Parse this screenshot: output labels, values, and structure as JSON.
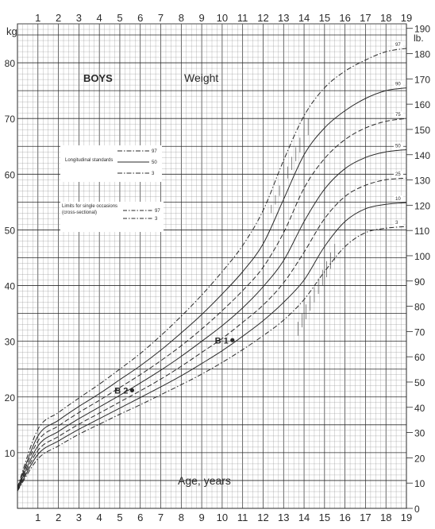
{
  "chart_data": {
    "type": "line",
    "title": "BOYS",
    "subtitle": "Weight",
    "xlabel": "Age, years",
    "ylabel_left": "kg",
    "ylabel_right": "lb.",
    "xlim": [
      0,
      19
    ],
    "ylim": [
      0,
      87
    ],
    "x_ticks": [
      "1",
      "2",
      "3",
      "4",
      "5",
      "6",
      "7",
      "8",
      "9",
      "10",
      "11",
      "12",
      "13",
      "14",
      "15",
      "16",
      "17",
      "18",
      "19"
    ],
    "kg_ticks": [
      "10",
      "20",
      "30",
      "40",
      "50",
      "60",
      "70",
      "80"
    ],
    "kg_tick_values": [
      10,
      20,
      30,
      40,
      50,
      60,
      70,
      80
    ],
    "lb_ticks": [
      "0",
      "10",
      "20",
      "30",
      "40",
      "50",
      "60",
      "70",
      "80",
      "90",
      "100",
      "110",
      "120",
      "130",
      "140",
      "150",
      "160",
      "170",
      "180",
      "190"
    ],
    "lb_tick_values": [
      0,
      10,
      20,
      30,
      40,
      50,
      60,
      70,
      80,
      90,
      100,
      110,
      120,
      130,
      140,
      150,
      160,
      170,
      180,
      190
    ],
    "grid": true,
    "legend": {
      "longitudinal_label": "Longitudinal standards",
      "longitudinal_lines": [
        "97",
        "50",
        "3"
      ],
      "cross_sectional_label": "Limits for single occasions (cross-sectional)",
      "cross_sectional_lines": [
        "97",
        "3"
      ]
    },
    "series": [
      {
        "name": "97",
        "style": "dashdot",
        "x": [
          0,
          1,
          2,
          3,
          4,
          5,
          6,
          7,
          8,
          9,
          10,
          11,
          12,
          13,
          14,
          15,
          16,
          17,
          18,
          19
        ],
        "y": [
          3.8,
          14.2,
          17.2,
          19.8,
          22.3,
          25,
          27.8,
          31,
          34.5,
          38.3,
          42.5,
          47.2,
          53.5,
          62.5,
          70.5,
          75.5,
          78.5,
          80.5,
          82,
          82.6
        ]
      },
      {
        "name": "90",
        "style": "solid",
        "x": [
          0,
          1,
          2,
          3,
          4,
          5,
          6,
          7,
          8,
          9,
          10,
          11,
          12,
          13,
          14,
          15,
          16,
          17,
          18,
          19
        ],
        "y": [
          3.6,
          13,
          15.8,
          18.3,
          20.6,
          23.1,
          25.6,
          28.4,
          31.5,
          34.8,
          38.5,
          42.5,
          47.5,
          55.5,
          63.5,
          68.3,
          71.4,
          73.6,
          75,
          75.5
        ]
      },
      {
        "name": "75",
        "style": "dashed",
        "x": [
          0,
          1,
          2,
          3,
          4,
          5,
          6,
          7,
          8,
          9,
          10,
          11,
          12,
          13,
          14,
          15,
          16,
          17,
          18,
          19
        ],
        "y": [
          3.5,
          12.1,
          14.8,
          17.2,
          19.4,
          21.7,
          24,
          26.5,
          29.2,
          32.2,
          35.5,
          39.1,
          43.3,
          49.5,
          57.5,
          62.8,
          66.2,
          68.3,
          69.5,
          70
        ]
      },
      {
        "name": "50",
        "style": "solid",
        "x": [
          0,
          1,
          2,
          3,
          4,
          5,
          6,
          7,
          8,
          9,
          10,
          11,
          12,
          13,
          14,
          15,
          16,
          17,
          18,
          19
        ],
        "y": [
          3.4,
          11.2,
          13.8,
          16.1,
          18.2,
          20.3,
          22.5,
          24.8,
          27.3,
          30,
          32.8,
          36,
          39.8,
          44.5,
          51.5,
          57.3,
          61,
          63,
          64,
          64.4
        ]
      },
      {
        "name": "25",
        "style": "dashed",
        "x": [
          0,
          1,
          2,
          3,
          4,
          5,
          6,
          7,
          8,
          9,
          10,
          11,
          12,
          13,
          14,
          15,
          16,
          17,
          18,
          19
        ],
        "y": [
          3.3,
          10.4,
          12.9,
          15.1,
          17.1,
          19.1,
          21.1,
          23.2,
          25.5,
          28,
          30.5,
          33.4,
          36.5,
          40.5,
          46,
          52,
          56,
          58,
          59,
          59.3
        ]
      },
      {
        "name": "10",
        "style": "solid",
        "x": [
          0,
          1,
          2,
          3,
          4,
          5,
          6,
          7,
          8,
          9,
          10,
          11,
          12,
          13,
          14,
          15,
          16,
          17,
          18,
          19
        ],
        "y": [
          3.2,
          9.7,
          12.1,
          14.2,
          16.1,
          18,
          19.9,
          21.8,
          23.8,
          26,
          28.3,
          30.9,
          33.7,
          37,
          41,
          47,
          51.5,
          53.8,
          54.6,
          54.9
        ]
      },
      {
        "name": "3",
        "style": "dashdot",
        "x": [
          0,
          1,
          2,
          3,
          4,
          5,
          6,
          7,
          8,
          9,
          10,
          11,
          12,
          13,
          14,
          15,
          16,
          17,
          18,
          19
        ],
        "y": [
          3.1,
          8.9,
          11.2,
          13.3,
          15.1,
          16.9,
          18.6,
          20.4,
          22.2,
          24.1,
          26.2,
          28.5,
          31,
          33.8,
          37.5,
          42.5,
          47,
          49.5,
          50.3,
          50.6
        ]
      }
    ],
    "cross_sectional_bands": [
      {
        "name": "97",
        "x": [
          12.4,
          14.2
        ],
        "y_low": [
          53,
          67
        ],
        "y_high": [
          54.5,
          70
        ]
      },
      {
        "name": "3",
        "x": [
          13.7,
          15.5
        ],
        "y_low": [
          31,
          44.5
        ],
        "y_high": [
          33.5,
          47.5
        ]
      }
    ],
    "annotations": [
      {
        "label": "B 1",
        "x": 10.5,
        "y": 30.2
      },
      {
        "label": "B 2",
        "x": 5.6,
        "y": 21.2
      }
    ]
  },
  "colors": {
    "ink": "#2a2a2a",
    "grid": "#8c8c8c",
    "background": "#ffffff"
  }
}
